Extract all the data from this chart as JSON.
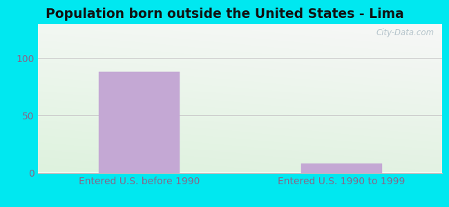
{
  "title": "Population born outside the United States - Lima",
  "categories": [
    "Entered U.S. before 1990",
    "Entered U.S. 1990 to 1999"
  ],
  "values": [
    88,
    8
  ],
  "bar_color": "#c4a8d4",
  "bar_edge_color": "#c4a8d4",
  "ylim": [
    0,
    130
  ],
  "yticks": [
    0,
    50,
    100
  ],
  "background_outer": "#00e8f0",
  "title_fontsize": 13.5,
  "tick_label_color": "#886688",
  "tick_fontsize": 10,
  "watermark": "City-Data.com",
  "bg_top_left": "#d4eee0",
  "bg_top_right": "#e8f4f8",
  "bg_bottom_left": "#c8e8c8",
  "bg_bottom_right": "#ddf0f0"
}
